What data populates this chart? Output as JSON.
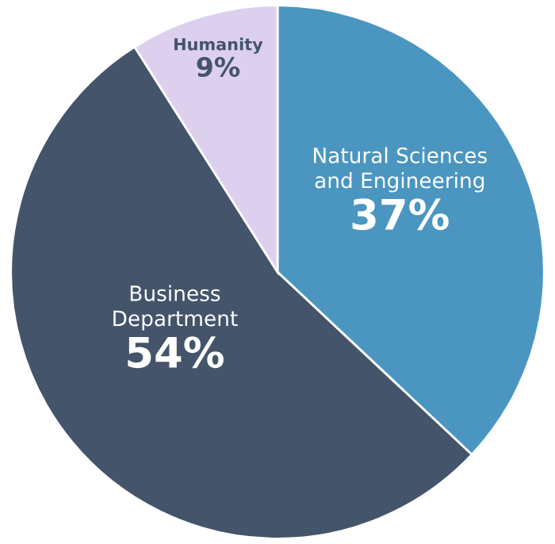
{
  "chart_data": {
    "type": "pie",
    "categories": [
      "Natural Sciences\nand Engineering",
      "Business\nDepartment",
      "Humanity"
    ],
    "values": [
      37,
      54,
      9
    ],
    "colors": [
      "#4a96c0",
      "#44546a",
      "#dcd0ee"
    ],
    "value_labels": [
      "37%",
      "54%",
      "9%"
    ],
    "legend": false
  }
}
